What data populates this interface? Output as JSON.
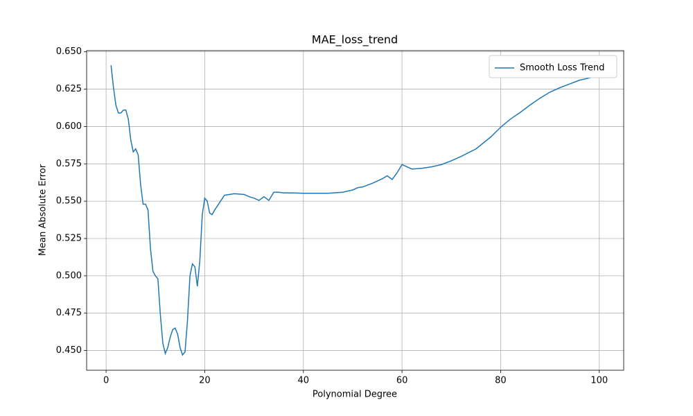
{
  "chart_data": {
    "type": "line",
    "title": "MAE_loss_trend",
    "x_label": "Polynomial Degree",
    "y_label": "Mean Absolute Error",
    "xlim": [
      -3.95,
      104.95
    ],
    "ylim": [
      0.4368,
      0.6508
    ],
    "xticks": [
      0,
      20,
      40,
      60,
      80,
      100
    ],
    "yticks": [
      {
        "value": 0.45,
        "label": "0.450"
      },
      0.475,
      {
        "value": 0.5,
        "label": "0.500"
      },
      0.525,
      {
        "value": 0.55,
        "label": "0.550"
      },
      0.575,
      {
        "value": 0.6,
        "label": "0.600"
      },
      0.625,
      {
        "value": 0.65,
        "label": "0.650"
      }
    ],
    "grid": true,
    "legend": "upper right",
    "x": [
      1,
      1.5,
      2,
      2.5,
      3,
      3.5,
      4,
      4.5,
      5,
      5.5,
      6,
      6.5,
      7,
      7.5,
      8,
      8.5,
      9,
      9.5,
      10,
      10.5,
      11,
      11.5,
      12,
      12.5,
      13,
      13.5,
      14,
      14.5,
      15,
      15.5,
      16,
      16.5,
      17,
      17.5,
      18,
      18.5,
      19,
      19.5,
      20,
      20.5,
      21,
      21.5,
      22,
      23,
      24,
      25,
      26,
      28,
      29,
      30,
      31,
      32,
      33,
      34,
      35,
      36,
      38,
      40,
      45,
      48,
      50,
      51,
      52,
      54,
      56,
      57,
      58,
      59,
      60,
      61,
      62,
      64,
      66,
      68,
      70,
      72,
      75,
      78,
      80,
      82,
      84,
      86,
      88,
      90,
      92,
      94,
      96,
      98,
      100
    ],
    "series": [
      {
        "name": "Smooth Loss Trend",
        "color": "#1f77b4",
        "values": [
          0.641,
          0.626,
          0.614,
          0.609,
          0.609,
          0.611,
          0.611,
          0.605,
          0.591,
          0.583,
          0.585,
          0.581,
          0.561,
          0.548,
          0.548,
          0.544,
          0.518,
          0.503,
          0.5,
          0.498,
          0.474,
          0.455,
          0.448,
          0.452,
          0.459,
          0.464,
          0.465,
          0.461,
          0.452,
          0.447,
          0.449,
          0.47,
          0.5,
          0.508,
          0.506,
          0.493,
          0.51,
          0.541,
          0.552,
          0.55,
          0.542,
          0.541,
          0.544,
          0.549,
          0.554,
          0.5545,
          0.555,
          0.5545,
          0.553,
          0.552,
          0.5505,
          0.553,
          0.5505,
          0.556,
          0.556,
          0.5555,
          0.5555,
          0.5553,
          0.5553,
          0.556,
          0.5575,
          0.559,
          0.5595,
          0.562,
          0.565,
          0.567,
          0.5645,
          0.569,
          0.5745,
          0.573,
          0.5715,
          0.572,
          0.573,
          0.5745,
          0.577,
          0.58,
          0.585,
          0.593,
          0.5995,
          0.605,
          0.6095,
          0.6145,
          0.619,
          0.623,
          0.626,
          0.6285,
          0.631,
          0.6325,
          0.635
        ]
      }
    ]
  }
}
